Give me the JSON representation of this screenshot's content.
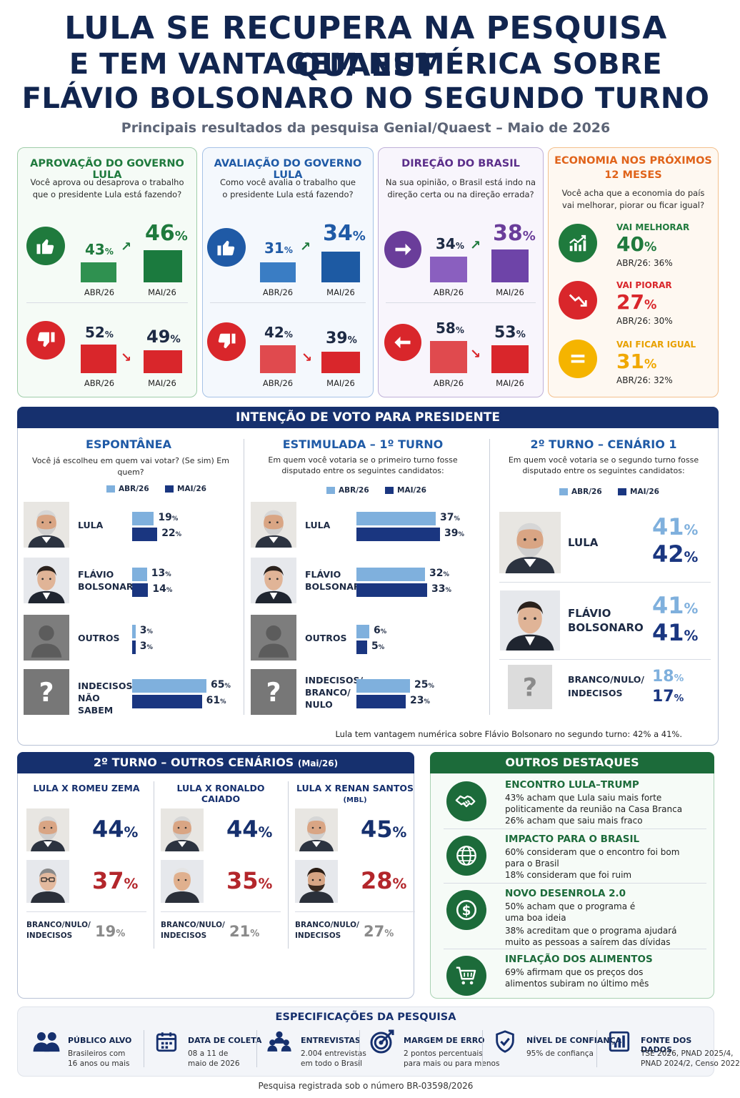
{
  "title": {
    "line1": "LULA SE RECUPERA NA PESQUISA QUAEST",
    "line2": "E TEM VANTAGEM NUMÉRICA SOBRE",
    "line3": "FLÁVIO BOLSONARO NO SEGUNDO TURNO",
    "subtitle": "Principais resultados da pesquisa Genial/Quaest – Maio de 2026"
  },
  "colors": {
    "navy": "#16306e",
    "green": "#1f7a3d",
    "blue": "#1f5aa6",
    "purple": "#6a3d9a",
    "orange": "#e36b12",
    "red": "#d9262b",
    "lightblue": "#7fb0dd",
    "darkblue": "#1a3680",
    "yellow": "#f5b400"
  },
  "approval": {
    "title": "APROVAÇÃO DO GOVERNO LULA",
    "question": [
      "Você aprova ou desaprova o trabalho",
      "que o presidente Lula está fazendo?"
    ],
    "up_icon": "thumbs-up-icon",
    "down_icon": "thumbs-down-icon",
    "positive": {
      "before": 43,
      "after": 46,
      "before_label": "43",
      "after_label": "46",
      "label_before": "ABR/26",
      "label_after": "MAI/26"
    },
    "negative": {
      "before": 52,
      "after": 49,
      "before_label": "52",
      "after_label": "49",
      "label_before": "ABR/26",
      "label_after": "MAI/26"
    }
  },
  "evaluation": {
    "title": "AVALIAÇÃO DO GOVERNO LULA",
    "question": [
      "Como você avalia o trabalho que",
      "o presidente Lula está fazendo?"
    ],
    "positive": {
      "before_label": "31",
      "after_label": "34",
      "label_before": "ABR/26",
      "label_after": "MAI/26"
    },
    "negative": {
      "before_label": "42",
      "after_label": "39",
      "label_before": "ABR/26",
      "label_after": "MAI/26"
    }
  },
  "direction": {
    "title": "DIREÇÃO DO BRASIL",
    "question": [
      "Na sua opinião, o Brasil está indo na",
      "direção certa ou na direção errada?"
    ],
    "positive": {
      "before_label": "34",
      "after_label": "38",
      "label_before": "ABR/26",
      "label_after": "MAI/26"
    },
    "negative": {
      "before_label": "58",
      "after_label": "53",
      "label_before": "ABR/26",
      "label_after": "MAI/26"
    }
  },
  "economy": {
    "title": [
      "ECONOMIA NOS PRÓXIMOS",
      "12 MESES"
    ],
    "question": [
      "Você acha que a economia do país",
      "vai melhorar, piorar ou ficar igual?"
    ],
    "items": [
      {
        "label": "VAI MELHORAR",
        "value": "40",
        "prev": "ABR/26: 36%"
      },
      {
        "label": "VAI PIORAR",
        "value": "27",
        "prev": "ABR/26: 30%"
      },
      {
        "label": "VAI FICAR IGUAL",
        "value": "31",
        "prev": "ABR/26: 32%"
      }
    ]
  },
  "vote": {
    "header": "INTENÇÃO DE VOTO PARA PRESIDENTE",
    "legend_abr": "ABR/26",
    "legend_mai": "MAI/26",
    "spontaneous": {
      "title": "ESPONTÂNEA",
      "question": [
        "Você já escolheu em quem vai votar? (Se sim) Em quem?"
      ],
      "rows": [
        {
          "name": [
            "LULA"
          ],
          "abr": 19,
          "mai": 22,
          "abr_label": "19",
          "mai_label": "22"
        },
        {
          "name": [
            "FLÁVIO",
            "BOLSONARO"
          ],
          "abr": 13,
          "mai": 14,
          "abr_label": "13",
          "mai_label": "14"
        },
        {
          "name": [
            "OUTROS"
          ],
          "abr": 3,
          "mai": 3,
          "abr_label": "3",
          "mai_label": "3"
        },
        {
          "name": [
            "INDECISOS/",
            "NÃO SABEM"
          ],
          "abr": 65,
          "mai": 61,
          "abr_label": "65",
          "mai_label": "61"
        }
      ]
    },
    "stimulated": {
      "title": "ESTIMULADA – 1º TURNO",
      "question": [
        "Em quem você votaria se o primeiro turno fosse",
        "disputado entre os seguintes candidatos:"
      ],
      "rows": [
        {
          "name": [
            "LULA"
          ],
          "abr": 37,
          "mai": 39,
          "abr_label": "37",
          "mai_label": "39"
        },
        {
          "name": [
            "FLÁVIO",
            "BOLSONARO"
          ],
          "abr": 32,
          "mai": 33,
          "abr_label": "32",
          "mai_label": "33"
        },
        {
          "name": [
            "OUTROS"
          ],
          "abr": 6,
          "mai": 5,
          "abr_label": "6",
          "mai_label": "5"
        },
        {
          "name": [
            "INDECISOS/",
            "BRANCO/",
            "NULO"
          ],
          "abr": 25,
          "mai": 23,
          "abr_label": "25",
          "mai_label": "23"
        }
      ]
    },
    "second_round": {
      "title": "2º TURNO – CENÁRIO 1",
      "question": [
        "Em quem você votaria se o segundo turno fosse",
        "disputado entre os seguintes candidatos:"
      ],
      "rows": [
        {
          "name": [
            "LULA"
          ],
          "abr_label": "41",
          "mai_label": "42"
        },
        {
          "name": [
            "FLÁVIO",
            "BOLSONARO"
          ],
          "abr_label": "41",
          "mai_label": "41"
        },
        {
          "name": [
            "BRANCO/NULO/",
            "INDECISOS"
          ],
          "abr_label": "18",
          "mai_label": "17"
        }
      ]
    },
    "footnote": "Lula tem vantagem numérica sobre Flávio Bolsonaro no segundo turno: 42% a 41%."
  },
  "other_scenarios": {
    "header": "2º TURNO – OUTROS CENÁRIOS",
    "header_small": "(Mai/26)",
    "blank_label": [
      "BRANCO/NULO/",
      "INDECISOS"
    ],
    "scenarios": [
      {
        "title": "LULA X ROMEU ZEMA",
        "lula": "44",
        "other": "37",
        "blank": "19"
      },
      {
        "title": "LULA X RONALDO CAIADO",
        "lula": "44",
        "other": "35",
        "blank": "21"
      },
      {
        "title": "LULA X RENAN SANTOS",
        "title_small": "(MBL)",
        "lula": "45",
        "other": "28",
        "blank": "27"
      }
    ]
  },
  "highlights": {
    "header": "OUTROS DESTAQUES",
    "items": [
      {
        "icon": "handshake-icon",
        "title": "ENCONTRO LULA–TRUMP",
        "lines": [
          "43% acham que Lula saiu mais forte",
          "politicamente da reunião na Casa Branca",
          "26% acham que saiu mais fraco"
        ]
      },
      {
        "icon": "globe-icon",
        "title": "IMPACTO PARA O BRASIL",
        "lines": [
          "60% consideram que o encontro foi bom",
          "para o Brasil",
          "18% consideram que foi ruim"
        ]
      },
      {
        "icon": "dollar-icon",
        "title": "NOVO DESENROLA 2.0",
        "lines": [
          "50% acham que o programa é",
          "uma boa ideia",
          "38% acreditam que o programa ajudará",
          "muito as pessoas a saírem das dívidas"
        ]
      },
      {
        "icon": "cart-icon",
        "title": "INFLAÇÃO DOS ALIMENTOS",
        "lines": [
          "69% afirmam que os preços dos",
          "alimentos subiram no último mês"
        ]
      }
    ]
  },
  "specs": {
    "header": "ESPECIFICAÇÕES DA PESQUISA",
    "items": [
      {
        "icon": "people-icon",
        "title": "PÚBLICO ALVO",
        "lines": [
          "Brasileiros com",
          "16 anos ou mais"
        ]
      },
      {
        "icon": "calendar-icon",
        "title": "DATA DE COLETA",
        "lines": [
          "08 a 11 de",
          "maio de 2026"
        ]
      },
      {
        "icon": "group-icon",
        "title": "ENTREVISTAS",
        "lines": [
          "2.004 entrevistas",
          "em todo o Brasil"
        ]
      },
      {
        "icon": "target-icon",
        "title": "MARGEM DE ERRO",
        "lines": [
          "2 pontos percentuais",
          "para mais ou para menos"
        ]
      },
      {
        "icon": "shield-icon",
        "title": "NÍVEL DE CONFIANÇA",
        "lines": [
          "95% de confiança"
        ]
      },
      {
        "icon": "chart-icon",
        "title": "FONTE DOS DADOS",
        "lines": [
          "TSE 2026, PNAD 2025/4,",
          "PNAD 2024/2, Censo 2022"
        ]
      }
    ],
    "footer": "Pesquisa registrada sob o número BR-03598/2026"
  },
  "chart_data": [
    {
      "type": "bar",
      "title": "APROVAÇÃO DO GOVERNO LULA",
      "categories": [
        "ABR/26",
        "MAI/26"
      ],
      "series": [
        {
          "values": [
            43,
            46
          ]
        },
        {
          "values": [
            52,
            49
          ]
        }
      ]
    },
    {
      "type": "bar",
      "title": "AVALIAÇÃO DO GOVERNO LULA",
      "categories": [
        "ABR/26",
        "MAI/26"
      ],
      "series": [
        {
          "values": [
            31,
            34
          ]
        },
        {
          "values": [
            42,
            39
          ]
        }
      ]
    },
    {
      "type": "bar",
      "title": "DIREÇÃO DO BRASIL",
      "categories": [
        "ABR/26",
        "MAI/26"
      ],
      "series": [
        {
          "values": [
            34,
            38
          ]
        },
        {
          "values": [
            58,
            53
          ]
        }
      ]
    },
    {
      "type": "table",
      "title": "ECONOMIA NOS PRÓXIMOS 12 MESES",
      "categories": [
        "VAI MELHORAR",
        "VAI PIORAR",
        "VAI FICAR IGUAL"
      ],
      "series": [
        {
          "name": "ABR/26",
          "values": [
            36,
            30,
            32
          ]
        },
        {
          "name": "MAI/26",
          "values": [
            40,
            27,
            31
          ]
        }
      ]
    },
    {
      "type": "bar",
      "title": "ESPONTÂNEA",
      "categories": [
        "LULA",
        "FLÁVIO BOLSONARO",
        "OUTROS",
        "INDECISOS/NÃO SABEM"
      ],
      "series": [
        {
          "name": "ABR/26",
          "values": [
            19,
            13,
            3,
            65
          ]
        },
        {
          "name": "MAI/26",
          "values": [
            22,
            14,
            3,
            61
          ]
        }
      ]
    },
    {
      "type": "bar",
      "title": "ESTIMULADA – 1º TURNO",
      "categories": [
        "LULA",
        "FLÁVIO BOLSONARO",
        "OUTROS",
        "INDECISOS/BRANCO/NULO"
      ],
      "series": [
        {
          "name": "ABR/26",
          "values": [
            37,
            32,
            6,
            25
          ]
        },
        {
          "name": "MAI/26",
          "values": [
            39,
            33,
            5,
            23
          ]
        }
      ]
    },
    {
      "type": "table",
      "title": "2º TURNO – CENÁRIO 1",
      "categories": [
        "LULA",
        "FLÁVIO BOLSONARO",
        "BRANCO/NULO/INDECISOS"
      ],
      "series": [
        {
          "name": "ABR/26",
          "values": [
            41,
            41,
            18
          ]
        },
        {
          "name": "MAI/26",
          "values": [
            42,
            41,
            17
          ]
        }
      ]
    }
  ]
}
